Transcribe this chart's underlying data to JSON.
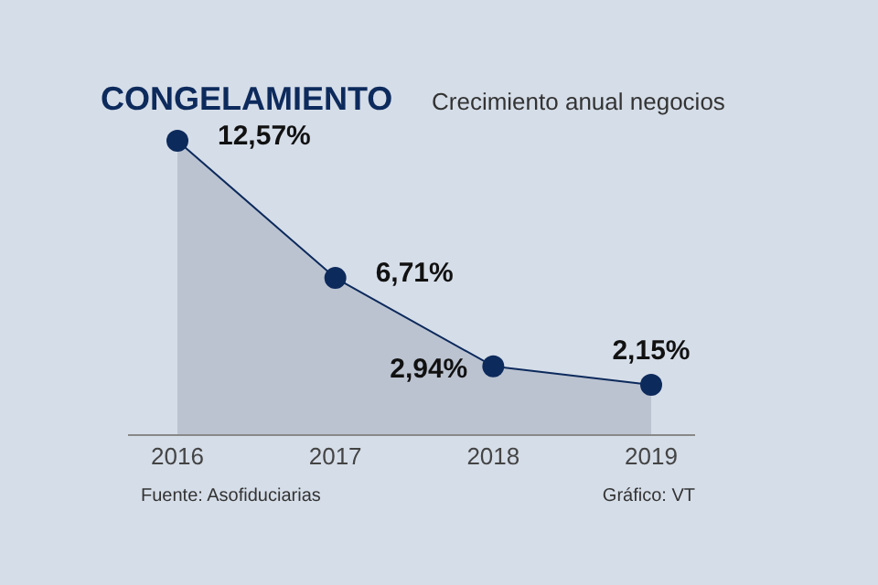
{
  "chart_data": {
    "type": "area",
    "title": "CONGELAMIENTO",
    "subtitle": "Crecimiento anual negocios",
    "categories": [
      "2016",
      "2017",
      "2018",
      "2019"
    ],
    "series": [
      {
        "color": "#0d2a5c",
        "values": [
          12.57,
          6.71,
          2.94,
          2.15
        ],
        "value_labels": [
          "12,57%",
          "6,71%",
          "2,94%",
          "2,15%"
        ]
      }
    ],
    "marker": "circle",
    "annotations": [
      "Fuente: Asofiduciarias",
      "Gráfico: VT"
    ]
  }
}
